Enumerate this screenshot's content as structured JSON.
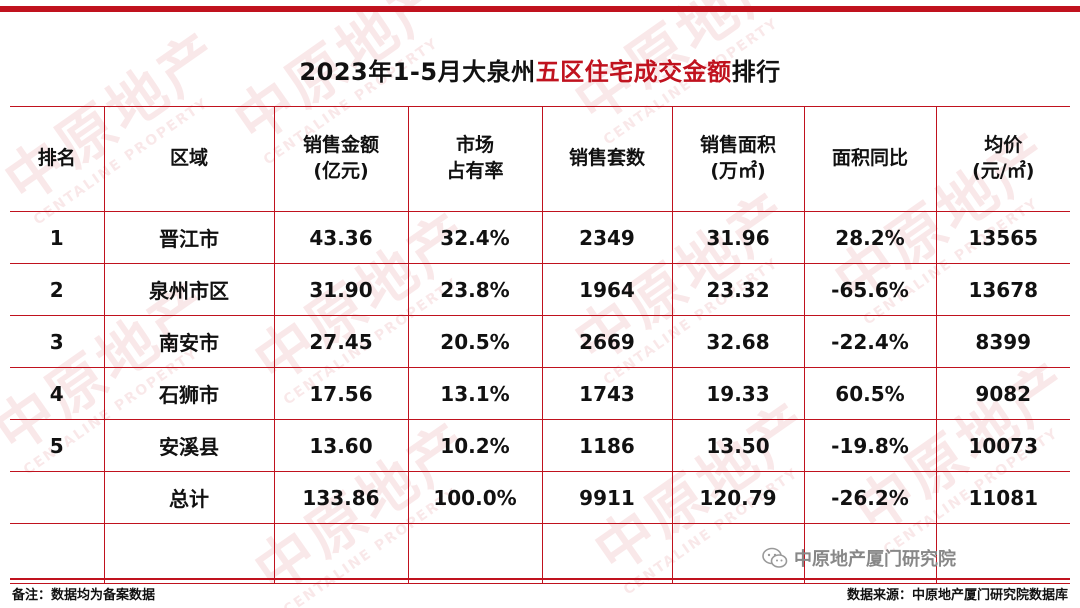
{
  "title": {
    "prefix": "2023年1-5月大泉州",
    "highlight": "五区住宅成交金额",
    "suffix": "排行"
  },
  "headers": [
    {
      "line1": "排名",
      "line2": ""
    },
    {
      "line1": "区域",
      "line2": ""
    },
    {
      "line1": "销售金额",
      "line2": "(亿元)"
    },
    {
      "line1": "市场",
      "line2": "占有率"
    },
    {
      "line1": "销售套数",
      "line2": ""
    },
    {
      "line1": "销售面积",
      "line2": "(万㎡)"
    },
    {
      "line1": "面积同比",
      "line2": ""
    },
    {
      "line1": "均价",
      "line2": "(元/㎡)"
    }
  ],
  "rows": [
    {
      "rank": "1",
      "area": "晋江市",
      "amount": "43.36",
      "share": "32.4%",
      "units": "2349",
      "size": "31.96",
      "yoy": "28.2%",
      "price": "13565"
    },
    {
      "rank": "2",
      "area": "泉州市区",
      "amount": "31.90",
      "share": "23.8%",
      "units": "1964",
      "size": "23.32",
      "yoy": "-65.6%",
      "price": "13678"
    },
    {
      "rank": "3",
      "area": "南安市",
      "amount": "27.45",
      "share": "20.5%",
      "units": "2669",
      "size": "32.68",
      "yoy": "-22.4%",
      "price": "8399"
    },
    {
      "rank": "4",
      "area": "石狮市",
      "amount": "17.56",
      "share": "13.1%",
      "units": "1743",
      "size": "19.33",
      "yoy": "60.5%",
      "price": "9082"
    },
    {
      "rank": "5",
      "area": "安溪县",
      "amount": "13.60",
      "share": "10.2%",
      "units": "1186",
      "size": "13.50",
      "yoy": "-19.8%",
      "price": "10073"
    }
  ],
  "total": {
    "rank": "",
    "area": "总计",
    "amount": "133.86",
    "share": "100.0%",
    "units": "9911",
    "size": "120.79",
    "yoy": "-26.2%",
    "price": "11081"
  },
  "footer": {
    "note": "备注：数据均为备案数据",
    "source": "数据来源：中原地产厦门研究院数据库",
    "wechat_account": "中原地产厦门研究院",
    "wechat_icon": "wechat-icon"
  },
  "watermark": {
    "text": "中原地产",
    "sub": "CENTALINE PROPERTY"
  },
  "colors": {
    "accent": "#c0121e",
    "watermark": "#c81e28"
  }
}
